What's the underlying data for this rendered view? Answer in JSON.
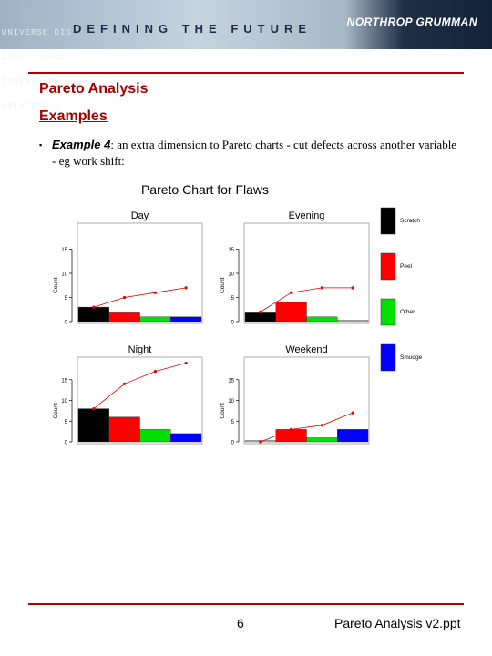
{
  "header": {
    "watermark_lines": [
      "UNIVERSE DIS",
      "CYBER SPACE",
      "CYBERSPACE L",
      "UNIVERSE A"
    ],
    "tagline": "DEFINING THE FUTURE",
    "logo": "NORTHROP GRUMMAN",
    "accent_color": "#b40000"
  },
  "slide": {
    "title": "Pareto Analysis",
    "subtitle": "Examples",
    "bullet_label": "Example 4",
    "bullet_text": ": an extra dimension to Pareto charts - cut defects across another variable - eg work shift:"
  },
  "chart_data": {
    "type": "bar",
    "title": "Pareto Chart for Flaws",
    "categories": [
      "Scratch",
      "Peel",
      "Other",
      "Smudge"
    ],
    "colors": [
      "#000000",
      "#ff0000",
      "#00e000",
      "#0000ff"
    ],
    "ylabel": "Count",
    "ylim": [
      0,
      20
    ],
    "yticks": [
      0,
      5,
      10,
      15
    ],
    "legend_position": "right",
    "panels": [
      {
        "name": "Day",
        "values": [
          3,
          2,
          1,
          1
        ],
        "cumulative": [
          3,
          5,
          6,
          7
        ]
      },
      {
        "name": "Evening",
        "values": [
          2,
          4,
          1,
          0
        ],
        "cumulative": [
          2,
          6,
          7,
          7
        ]
      },
      {
        "name": "Night",
        "values": [
          8,
          6,
          3,
          2
        ],
        "cumulative": [
          8,
          14,
          17,
          19
        ]
      },
      {
        "name": "Weekend",
        "values": [
          0,
          3,
          1,
          3
        ],
        "cumulative": [
          0,
          3,
          4,
          7
        ]
      }
    ]
  },
  "footer": {
    "page_number": "6",
    "filename": "Pareto Analysis v2.ppt"
  }
}
